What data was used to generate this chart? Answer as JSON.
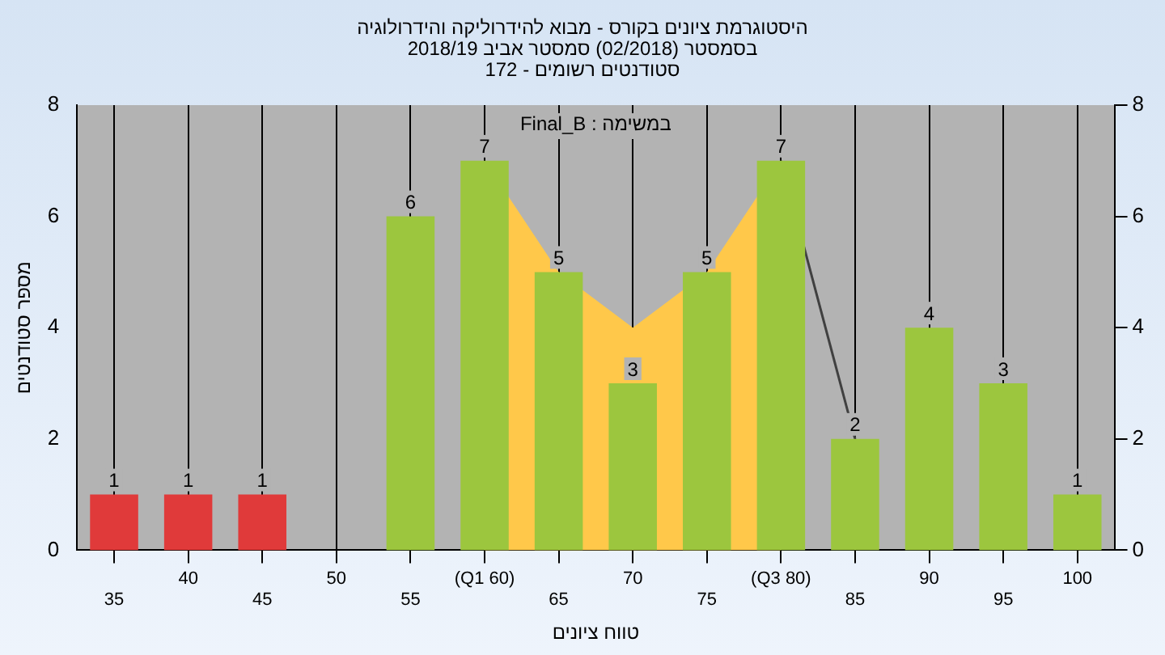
{
  "chart_data": {
    "type": "bar",
    "title": "היסטוגרמת ציונים בקורס - מבוא להידרוליקה והידרולוגיה",
    "subtitle": "בסמסטר (02/2018) סמסטר אביב 2018/19\nסטודנטים רשומים - 172",
    "xlabel": "טווח ציונים",
    "ylabel": "מספר סטודנטים",
    "annotations": [
      "במשימה : Final_B"
    ],
    "categories": [
      "35",
      "40",
      "45",
      "50",
      "55",
      "(Q1 60)",
      "65",
      "70",
      "75",
      "(Q3 80)",
      "85",
      "90",
      "95",
      "100"
    ],
    "series": [
      {
        "type": "bar",
        "colors": [
          "#e03a3a",
          "#e03a3a",
          "#e03a3a",
          "#e03a3a",
          "#9cc63e",
          "#9cc63e",
          "#9cc63e",
          "#9cc63e",
          "#9cc63e",
          "#9cc63e",
          "#9cc63e",
          "#9cc63e",
          "#9cc63e",
          "#9cc63e"
        ],
        "values": [
          1,
          1,
          1,
          0,
          6,
          7,
          5,
          3,
          5,
          7,
          2,
          4,
          3,
          1
        ],
        "value_labels": [
          "1",
          "1",
          "1",
          null,
          "6",
          "7",
          "5",
          "3",
          "5",
          "7",
          "2",
          "4",
          "3",
          "1"
        ]
      },
      {
        "type": "area",
        "color": "#ffc84a",
        "values": [
          null,
          null,
          null,
          null,
          null,
          7,
          5,
          4,
          5,
          7,
          null,
          null,
          null,
          null
        ]
      },
      {
        "type": "line",
        "color": "#404040",
        "values": [
          null,
          null,
          null,
          null,
          null,
          null,
          null,
          null,
          null,
          7,
          2,
          null,
          null,
          null
        ]
      }
    ],
    "ylim": [
      0,
      8
    ],
    "yticks": [
      0,
      2,
      4,
      6,
      8
    ],
    "y2lim": [
      0,
      8
    ],
    "y2ticks": [
      0,
      2,
      4,
      6,
      8
    ],
    "grid": "x",
    "legend": false
  }
}
